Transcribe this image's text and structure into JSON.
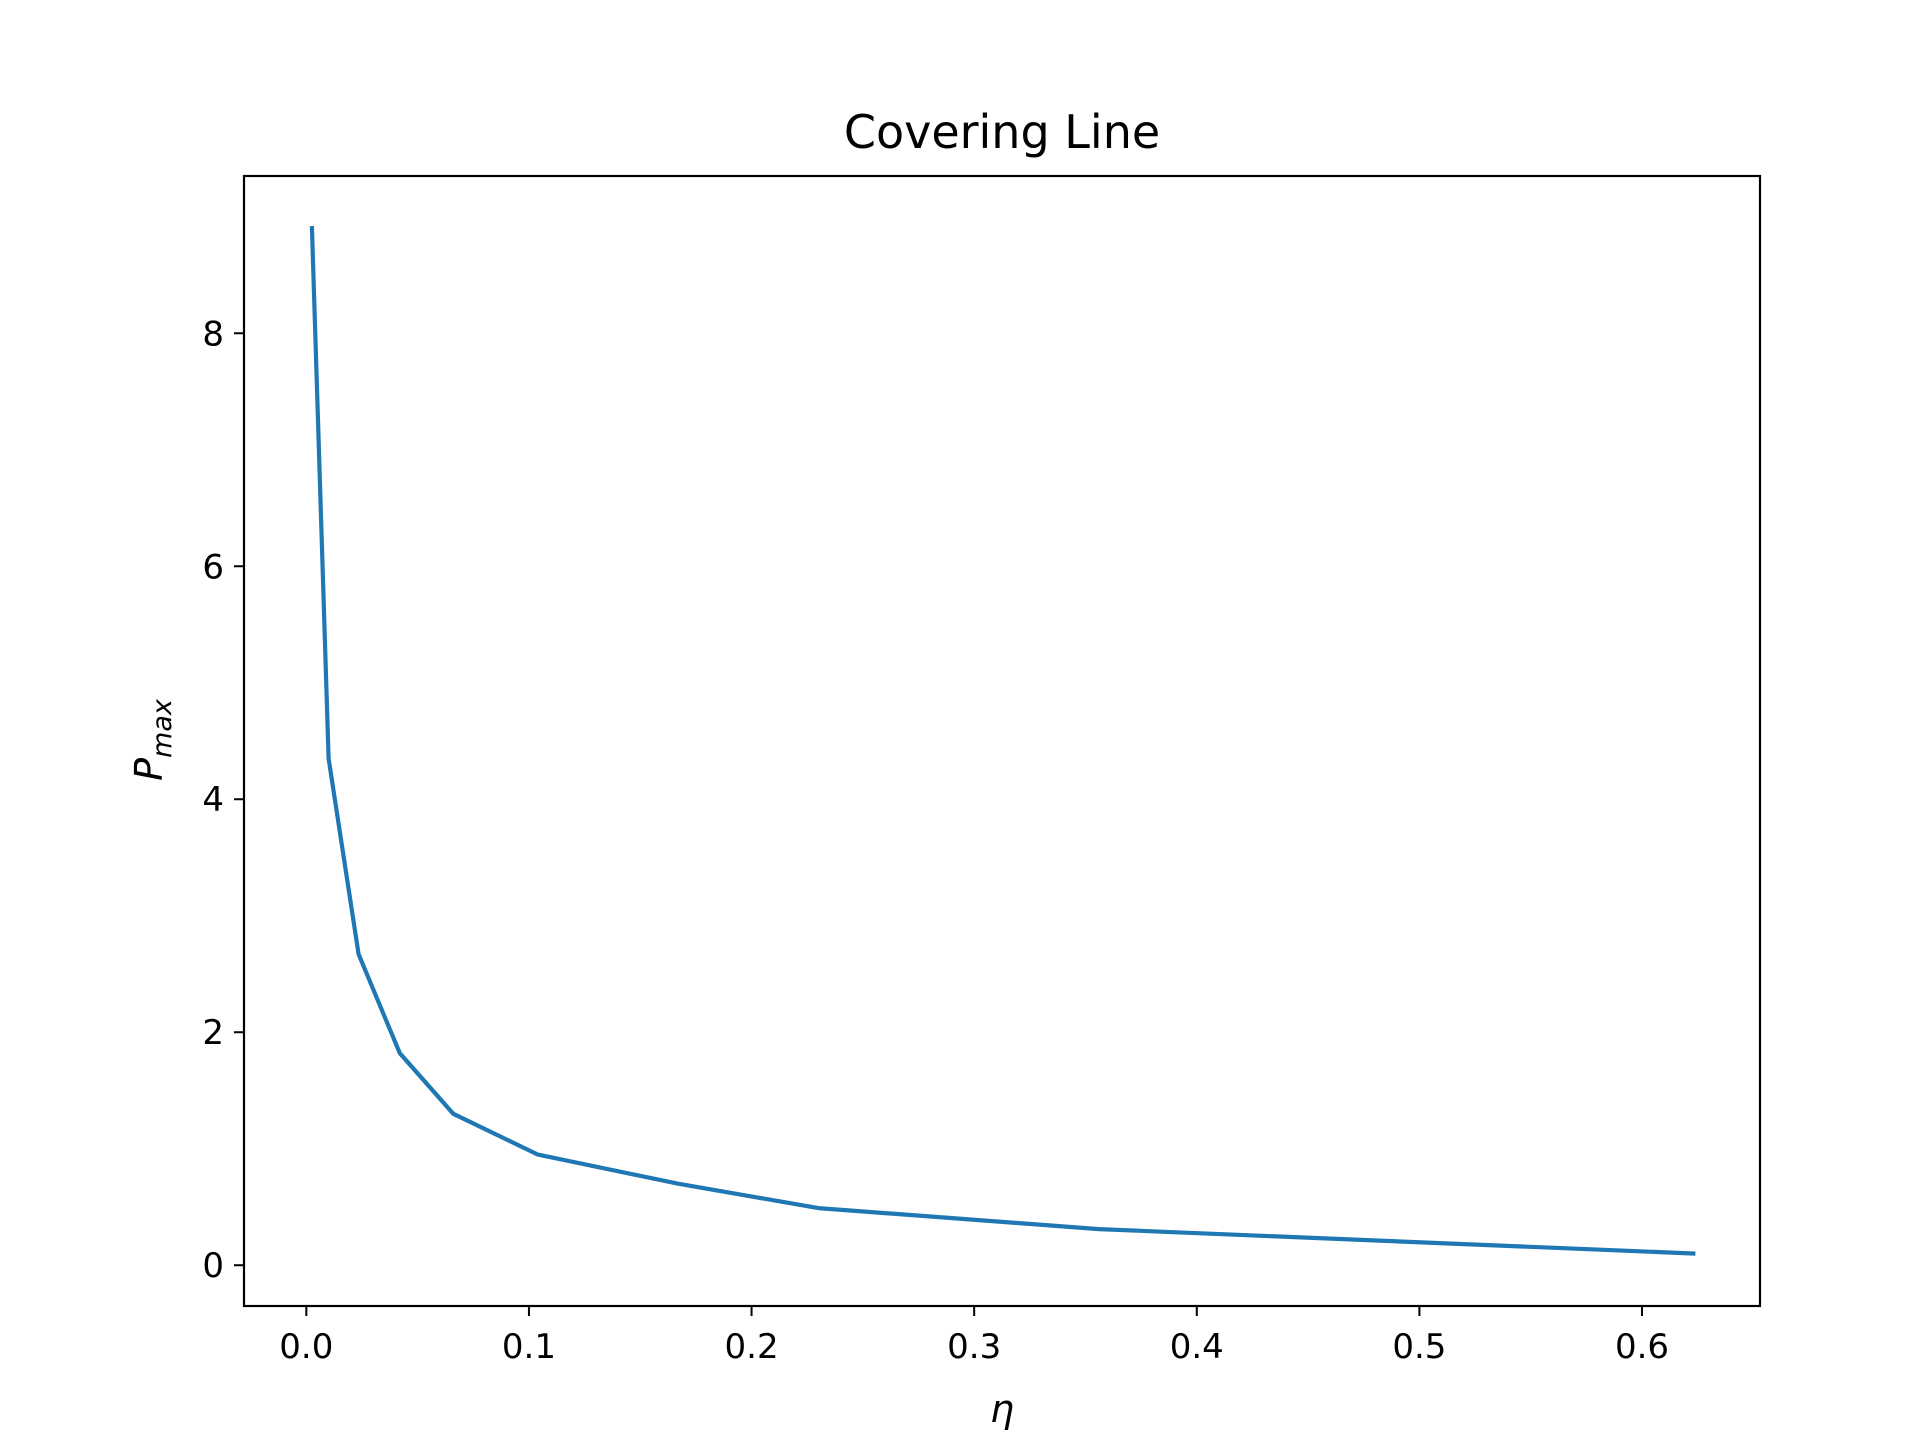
{
  "chart_data": {
    "type": "line",
    "title": "Covering Line",
    "xlabel": "η",
    "ylabel": {
      "base": "P",
      "subscript": "max"
    },
    "xlim": [
      -0.028,
      0.653
    ],
    "ylim": [
      -0.35,
      9.35
    ],
    "xticks": [
      0.0,
      0.1,
      0.2,
      0.3,
      0.4,
      0.5,
      0.6
    ],
    "xtick_labels": [
      "0.0",
      "0.1",
      "0.2",
      "0.3",
      "0.4",
      "0.5",
      "0.6"
    ],
    "yticks": [
      0,
      2,
      4,
      6,
      8
    ],
    "ytick_labels": [
      "0",
      "2",
      "4",
      "6",
      "8"
    ],
    "grid": false,
    "legend": "none",
    "series": [
      {
        "color": "#1f77b4",
        "x": [
          0.0025,
          0.01,
          0.0235,
          0.042,
          0.066,
          0.104,
          0.167,
          0.23,
          0.356,
          0.624
        ],
        "y": [
          8.92,
          4.35,
          2.67,
          1.82,
          1.3,
          0.95,
          0.7,
          0.49,
          0.31,
          0.1
        ]
      }
    ]
  }
}
